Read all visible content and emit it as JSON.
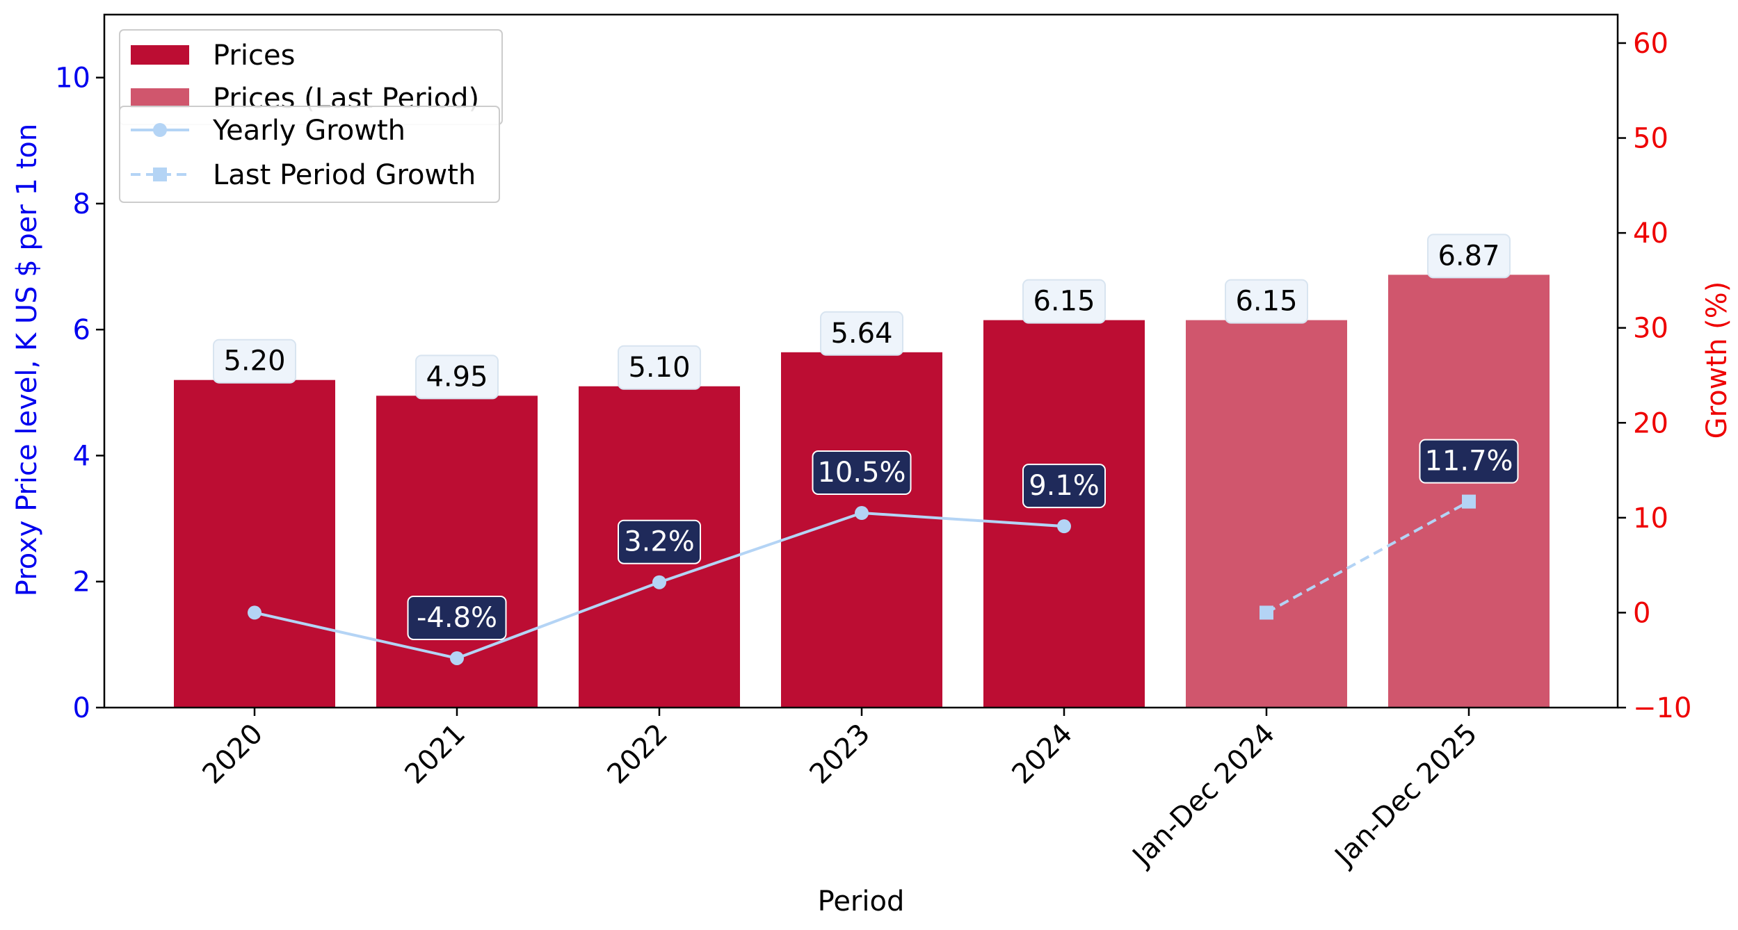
{
  "chart_data": {
    "type": "bar",
    "categories": [
      "2020",
      "2021",
      "2022",
      "2023",
      "2024",
      "Jan-Dec 2024",
      "Jan-Dec 2025"
    ],
    "xlabel": "Period",
    "ylabel_left": "Proxy Price level, K US $ per 1 ton",
    "ylabel_right": "Growth (%)",
    "ylim_left": [
      0,
      11
    ],
    "yticks_left": [
      "0",
      "2",
      "4",
      "6",
      "8",
      "10"
    ],
    "ylim_right": [
      -10,
      63
    ],
    "yticks_right": [
      "−10",
      "0",
      "10",
      "20",
      "30",
      "40",
      "50",
      "60"
    ],
    "series": [
      {
        "name": "Prices",
        "kind": "bar",
        "color": "#bc0d33",
        "values": [
          5.2,
          4.95,
          5.1,
          5.64,
          6.15,
          null,
          null
        ],
        "labels": [
          "5.20",
          "4.95",
          "5.10",
          "5.64",
          "6.15",
          "",
          ""
        ]
      },
      {
        "name": "Prices (Last Period)",
        "kind": "bar",
        "color": "#d0566d",
        "values": [
          null,
          null,
          null,
          null,
          null,
          6.15,
          6.87
        ],
        "labels": [
          "",
          "",
          "",
          "",
          "",
          "6.15",
          "6.87"
        ]
      },
      {
        "name": "Yearly Growth",
        "kind": "line",
        "color": "#b4d4f5",
        "values": [
          0.0,
          -4.8,
          3.2,
          10.5,
          9.1,
          null,
          null
        ],
        "labels": [
          "",
          "-4.8%",
          "3.2%",
          "10.5%",
          "9.1%",
          "",
          ""
        ]
      },
      {
        "name": "Last Period Growth",
        "kind": "dashed-line",
        "color": "#b4d4f5",
        "values": [
          null,
          null,
          null,
          null,
          null,
          0.0,
          11.7
        ],
        "labels": [
          "",
          "",
          "",
          "",
          "",
          "",
          "11.7%"
        ]
      }
    ],
    "legend_position": "top-left",
    "grid": false,
    "colors": {
      "left_axis": "#0000ee",
      "right_axis": "#ee0000",
      "price_label_bg": "#eef4fb",
      "growth_label_bg": "#1f2a5a"
    }
  }
}
